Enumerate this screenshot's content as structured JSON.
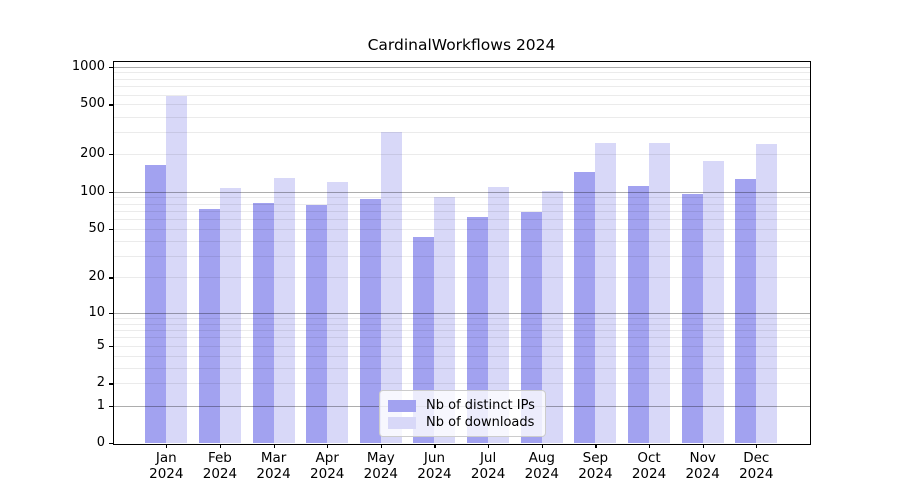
{
  "title": "CardinalWorkflows 2024",
  "chart_data": {
    "type": "bar",
    "title": "CardinalWorkflows 2024",
    "y_scale": "log10(1+y)",
    "ylim": [
      0,
      1000
    ],
    "grid": true,
    "legend_position": "bottom-center",
    "months": [
      "Jan",
      "Feb",
      "Mar",
      "Apr",
      "May",
      "Jun",
      "Jul",
      "Aug",
      "Sep",
      "Oct",
      "Nov",
      "Dec"
    ],
    "year": "2024",
    "series": [
      {
        "name": "Nb of distinct IPs",
        "color": "#a2a2f0",
        "values": [
          163,
          73,
          81,
          78,
          87,
          43,
          63,
          68,
          145,
          112,
          95,
          126
        ]
      },
      {
        "name": "Nb of downloads",
        "color": "#d8d8f8",
        "values": [
          588,
          108,
          128,
          120,
          300,
          90,
          110,
          102,
          245,
          245,
          175,
          240
        ]
      }
    ],
    "y_ticks": [
      {
        "label": "1000",
        "value": 1000
      },
      {
        "label": "500",
        "value": 500
      },
      {
        "label": "200",
        "value": 200
      },
      {
        "label": "100",
        "value": 100
      },
      {
        "label": "50",
        "value": 50
      },
      {
        "label": "20",
        "value": 20
      },
      {
        "label": "10",
        "value": 10
      },
      {
        "label": "5",
        "value": 5
      },
      {
        "label": "2",
        "value": 2
      },
      {
        "label": "1",
        "value": 1
      },
      {
        "label": "0",
        "value": 0
      }
    ],
    "minor_gridlines": [
      2,
      3,
      4,
      5,
      6,
      7,
      8,
      9,
      20,
      30,
      40,
      50,
      60,
      70,
      80,
      90,
      200,
      300,
      400,
      500,
      600,
      700,
      800,
      900
    ],
    "major_gridlines": [
      1,
      10,
      100,
      1000
    ]
  }
}
